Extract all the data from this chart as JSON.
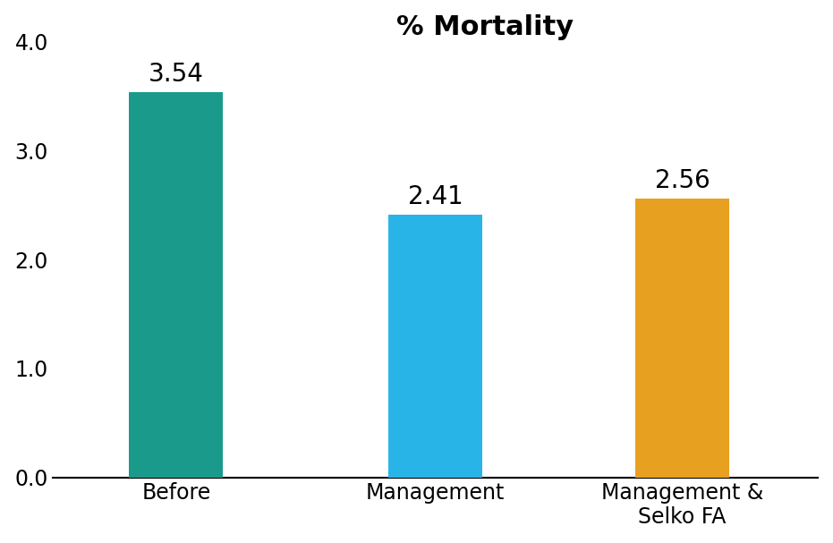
{
  "categories": [
    "Before",
    "Management",
    "Management &\nSelko FA"
  ],
  "values": [
    3.54,
    2.41,
    2.56
  ],
  "bar_colors": [
    "#1a9a8a",
    "#29b4e8",
    "#e8a020"
  ],
  "title": "% Mortality",
  "ylim": [
    0,
    4.0
  ],
  "yticks": [
    0.0,
    1.0,
    2.0,
    3.0,
    4.0
  ],
  "ytick_labels": [
    "0.0",
    "1.0",
    "2.0",
    "3.0",
    "4.0"
  ],
  "value_labels": [
    "3.54",
    "2.41",
    "2.56"
  ],
  "title_fontsize": 22,
  "tick_fontsize": 17,
  "label_fontsize": 17,
  "value_fontsize": 20,
  "bar_width": 0.38,
  "background_color": "#ffffff"
}
